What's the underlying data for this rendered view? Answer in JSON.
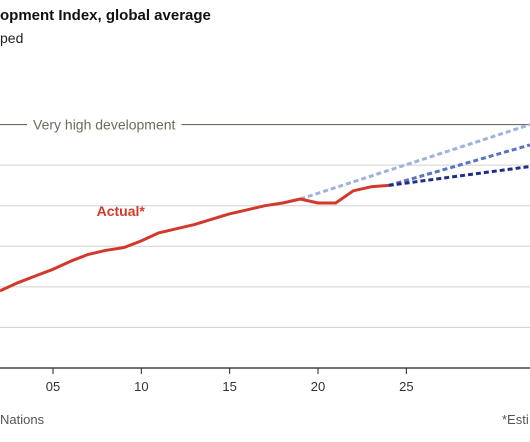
{
  "header": {
    "title": "opment Index, global average",
    "subtitle": "ped"
  },
  "footer": {
    "source": "Nations",
    "footnote": "*Esti"
  },
  "colors": {
    "actual": "#d13a2a",
    "reference": "#6e6a5c",
    "grid": "#d0d0d0",
    "proj_high": "#9fb2db",
    "proj_mid": "#5b72c0",
    "proj_low": "#1f2d8a"
  },
  "chart_data": {
    "type": "line",
    "x_ticks": [
      2005,
      2010,
      2015,
      2020,
      2025
    ],
    "x_tick_labels": [
      "05",
      "10",
      "15",
      "20",
      "25"
    ],
    "xlim": [
      2002,
      2032
    ],
    "ylim": [
      0.61,
      0.82
    ],
    "gridlines_y": [
      0.64,
      0.67,
      0.7,
      0.73,
      0.76,
      0.79
    ],
    "reference_line": {
      "label": "Very high development",
      "value": 0.79
    },
    "series": [
      {
        "name": "Actual*",
        "style": "solid",
        "x": [
          2002,
          2003,
          2004,
          2005,
          2006,
          2007,
          2008,
          2009,
          2010,
          2011,
          2012,
          2013,
          2014,
          2015,
          2016,
          2017,
          2018,
          2019,
          2020,
          2021,
          2022,
          2023,
          2024
        ],
        "y": [
          0.667,
          0.673,
          0.678,
          0.683,
          0.689,
          0.694,
          0.697,
          0.699,
          0.704,
          0.71,
          0.713,
          0.716,
          0.72,
          0.724,
          0.727,
          0.73,
          0.732,
          0.735,
          0.732,
          0.732,
          0.741,
          0.744,
          0.745
        ]
      }
    ],
    "projections": [
      {
        "style": "dashed",
        "x": [
          2019,
          2032
        ],
        "y": [
          0.735,
          0.79
        ]
      },
      {
        "style": "dashed",
        "x": [
          2024,
          2032
        ],
        "y": [
          0.745,
          0.775
        ]
      },
      {
        "style": "dashed",
        "x": [
          2024,
          2032
        ],
        "y": [
          0.745,
          0.759
        ]
      }
    ]
  }
}
